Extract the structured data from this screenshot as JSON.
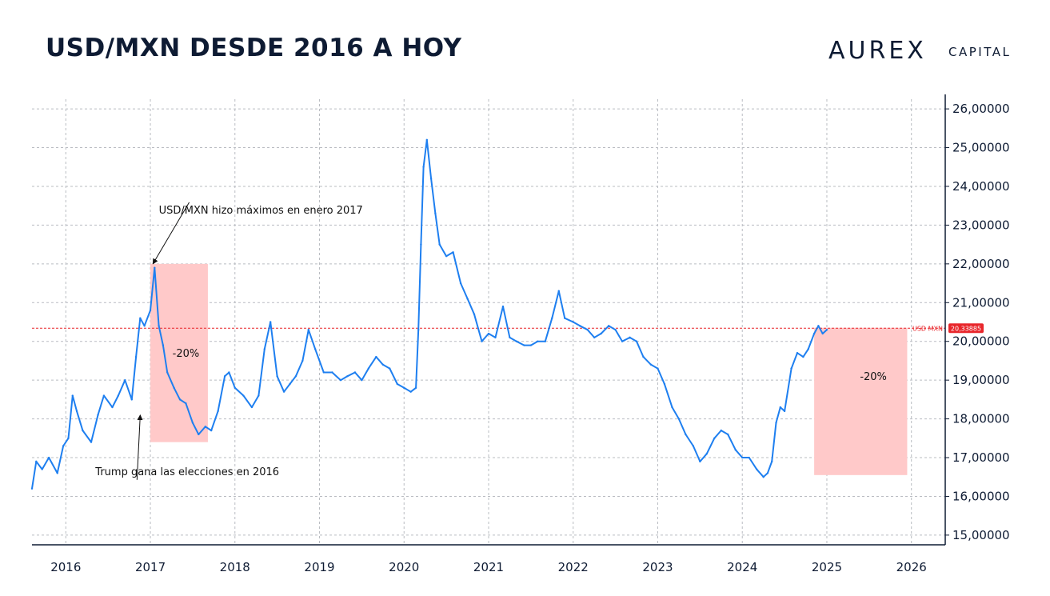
{
  "title": "USD/MXN DESDE 2016 A HOY",
  "logo": {
    "main": "AUREX",
    "sub": "CAPITAL"
  },
  "chart_data": {
    "type": "line",
    "title": "USD/MXN DESDE 2016 A HOY",
    "xlabel": "",
    "ylabel": "",
    "x_axis": {
      "min": 2015.6,
      "max": 2026.4,
      "tick_values": [
        2016,
        2017,
        2018,
        2019,
        2020,
        2021,
        2022,
        2023,
        2024,
        2025,
        2026
      ]
    },
    "y_axis": {
      "min": 14.75,
      "max": 26.25,
      "side": "right",
      "tick_values": [
        15,
        16,
        17,
        18,
        19,
        20,
        21,
        22,
        23,
        24,
        25,
        26
      ]
    },
    "x_tick_labels": [
      "2016",
      "2017",
      "2018",
      "2019",
      "2020",
      "2021",
      "2022",
      "2023",
      "2024",
      "2025",
      "2026"
    ],
    "y_tick_labels": [
      "15,00000",
      "16,00000",
      "17,00000",
      "18,00000",
      "19,00000",
      "20,00000",
      "21,00000",
      "22,00000",
      "23,00000",
      "24,00000",
      "25,00000",
      "26,00000"
    ],
    "grid": true,
    "line_color": "#1e7ff0",
    "series": [
      {
        "points": [
          [
            2015.6,
            16.2
          ],
          [
            2015.65,
            16.9
          ],
          [
            2015.72,
            16.7
          ],
          [
            2015.8,
            17.0
          ],
          [
            2015.9,
            16.6
          ],
          [
            2015.97,
            17.3
          ],
          [
            2016.03,
            17.5
          ],
          [
            2016.08,
            18.6
          ],
          [
            2016.13,
            18.2
          ],
          [
            2016.2,
            17.7
          ],
          [
            2016.3,
            17.4
          ],
          [
            2016.38,
            18.1
          ],
          [
            2016.45,
            18.6
          ],
          [
            2016.55,
            18.3
          ],
          [
            2016.62,
            18.6
          ],
          [
            2016.7,
            19.0
          ],
          [
            2016.78,
            18.5
          ],
          [
            2016.83,
            19.6
          ],
          [
            2016.88,
            20.6
          ],
          [
            2016.93,
            20.4
          ],
          [
            2017.0,
            20.8
          ],
          [
            2017.05,
            21.9
          ],
          [
            2017.1,
            20.4
          ],
          [
            2017.15,
            19.9
          ],
          [
            2017.2,
            19.2
          ],
          [
            2017.28,
            18.8
          ],
          [
            2017.35,
            18.5
          ],
          [
            2017.42,
            18.4
          ],
          [
            2017.5,
            17.9
          ],
          [
            2017.57,
            17.6
          ],
          [
            2017.65,
            17.8
          ],
          [
            2017.72,
            17.7
          ],
          [
            2017.8,
            18.2
          ],
          [
            2017.88,
            19.1
          ],
          [
            2017.93,
            19.2
          ],
          [
            2018.0,
            18.8
          ],
          [
            2018.1,
            18.6
          ],
          [
            2018.2,
            18.3
          ],
          [
            2018.28,
            18.6
          ],
          [
            2018.35,
            19.8
          ],
          [
            2018.42,
            20.5
          ],
          [
            2018.5,
            19.1
          ],
          [
            2018.58,
            18.7
          ],
          [
            2018.65,
            18.9
          ],
          [
            2018.72,
            19.1
          ],
          [
            2018.8,
            19.5
          ],
          [
            2018.87,
            20.3
          ],
          [
            2018.95,
            19.8
          ],
          [
            2019.05,
            19.2
          ],
          [
            2019.15,
            19.2
          ],
          [
            2019.25,
            19.0
          ],
          [
            2019.33,
            19.1
          ],
          [
            2019.42,
            19.2
          ],
          [
            2019.5,
            19.0
          ],
          [
            2019.58,
            19.3
          ],
          [
            2019.67,
            19.6
          ],
          [
            2019.75,
            19.4
          ],
          [
            2019.83,
            19.3
          ],
          [
            2019.92,
            18.9
          ],
          [
            2020.0,
            18.8
          ],
          [
            2020.08,
            18.7
          ],
          [
            2020.14,
            18.8
          ],
          [
            2020.17,
            20.3
          ],
          [
            2020.2,
            22.5
          ],
          [
            2020.23,
            24.5
          ],
          [
            2020.27,
            25.2
          ],
          [
            2020.32,
            24.2
          ],
          [
            2020.37,
            23.3
          ],
          [
            2020.42,
            22.5
          ],
          [
            2020.5,
            22.2
          ],
          [
            2020.58,
            22.3
          ],
          [
            2020.67,
            21.5
          ],
          [
            2020.75,
            21.1
          ],
          [
            2020.83,
            20.7
          ],
          [
            2020.92,
            20.0
          ],
          [
            2021.0,
            20.2
          ],
          [
            2021.08,
            20.1
          ],
          [
            2021.17,
            20.9
          ],
          [
            2021.25,
            20.1
          ],
          [
            2021.33,
            20.0
          ],
          [
            2021.42,
            19.9
          ],
          [
            2021.5,
            19.9
          ],
          [
            2021.58,
            20.0
          ],
          [
            2021.67,
            20.0
          ],
          [
            2021.75,
            20.6
          ],
          [
            2021.83,
            21.3
          ],
          [
            2021.9,
            20.6
          ],
          [
            2022.0,
            20.5
          ],
          [
            2022.08,
            20.4
          ],
          [
            2022.17,
            20.3
          ],
          [
            2022.25,
            20.1
          ],
          [
            2022.33,
            20.2
          ],
          [
            2022.42,
            20.4
          ],
          [
            2022.5,
            20.3
          ],
          [
            2022.58,
            20.0
          ],
          [
            2022.67,
            20.1
          ],
          [
            2022.75,
            20.0
          ],
          [
            2022.83,
            19.6
          ],
          [
            2022.92,
            19.4
          ],
          [
            2023.0,
            19.3
          ],
          [
            2023.08,
            18.9
          ],
          [
            2023.17,
            18.3
          ],
          [
            2023.25,
            18.0
          ],
          [
            2023.33,
            17.6
          ],
          [
            2023.42,
            17.3
          ],
          [
            2023.5,
            16.9
          ],
          [
            2023.58,
            17.1
          ],
          [
            2023.67,
            17.5
          ],
          [
            2023.75,
            17.7
          ],
          [
            2023.83,
            17.6
          ],
          [
            2023.92,
            17.2
          ],
          [
            2024.0,
            17.0
          ],
          [
            2024.08,
            17.0
          ],
          [
            2024.17,
            16.7
          ],
          [
            2024.25,
            16.5
          ],
          [
            2024.3,
            16.6
          ],
          [
            2024.35,
            16.9
          ],
          [
            2024.4,
            17.9
          ],
          [
            2024.45,
            18.3
          ],
          [
            2024.5,
            18.2
          ],
          [
            2024.58,
            19.3
          ],
          [
            2024.65,
            19.7
          ],
          [
            2024.72,
            19.6
          ],
          [
            2024.78,
            19.8
          ],
          [
            2024.85,
            20.2
          ],
          [
            2024.9,
            20.4
          ],
          [
            2024.95,
            20.2
          ],
          [
            2025.0,
            20.3
          ]
        ]
      }
    ],
    "reference_line": {
      "value": 20.33885,
      "label": "USD MXN",
      "value_label": "20,33885",
      "color": "#e8262b"
    },
    "shaded_regions": [
      {
        "x": [
          2017.0,
          2017.68
        ],
        "y": [
          17.4,
          22.0
        ],
        "label": "-20%",
        "label_at": [
          2017.42,
          19.6
        ],
        "color": "#ffc9c9"
      },
      {
        "x": [
          2024.85,
          2025.95
        ],
        "y": [
          16.55,
          20.35
        ],
        "label": "-20%",
        "label_at": [
          2025.55,
          19.0
        ],
        "color": "#ffc9c9"
      }
    ],
    "annotations": [
      {
        "text": "USD/MXN hizo máximos en enero 2017",
        "text_at": [
          2017.1,
          23.3
        ],
        "arrow_to": [
          2017.03,
          22.0
        ]
      },
      {
        "text": "Trump gana las elecciones en 2016",
        "text_at": [
          2016.35,
          16.55
        ],
        "arrow_to": [
          2016.88,
          18.1
        ]
      }
    ]
  }
}
